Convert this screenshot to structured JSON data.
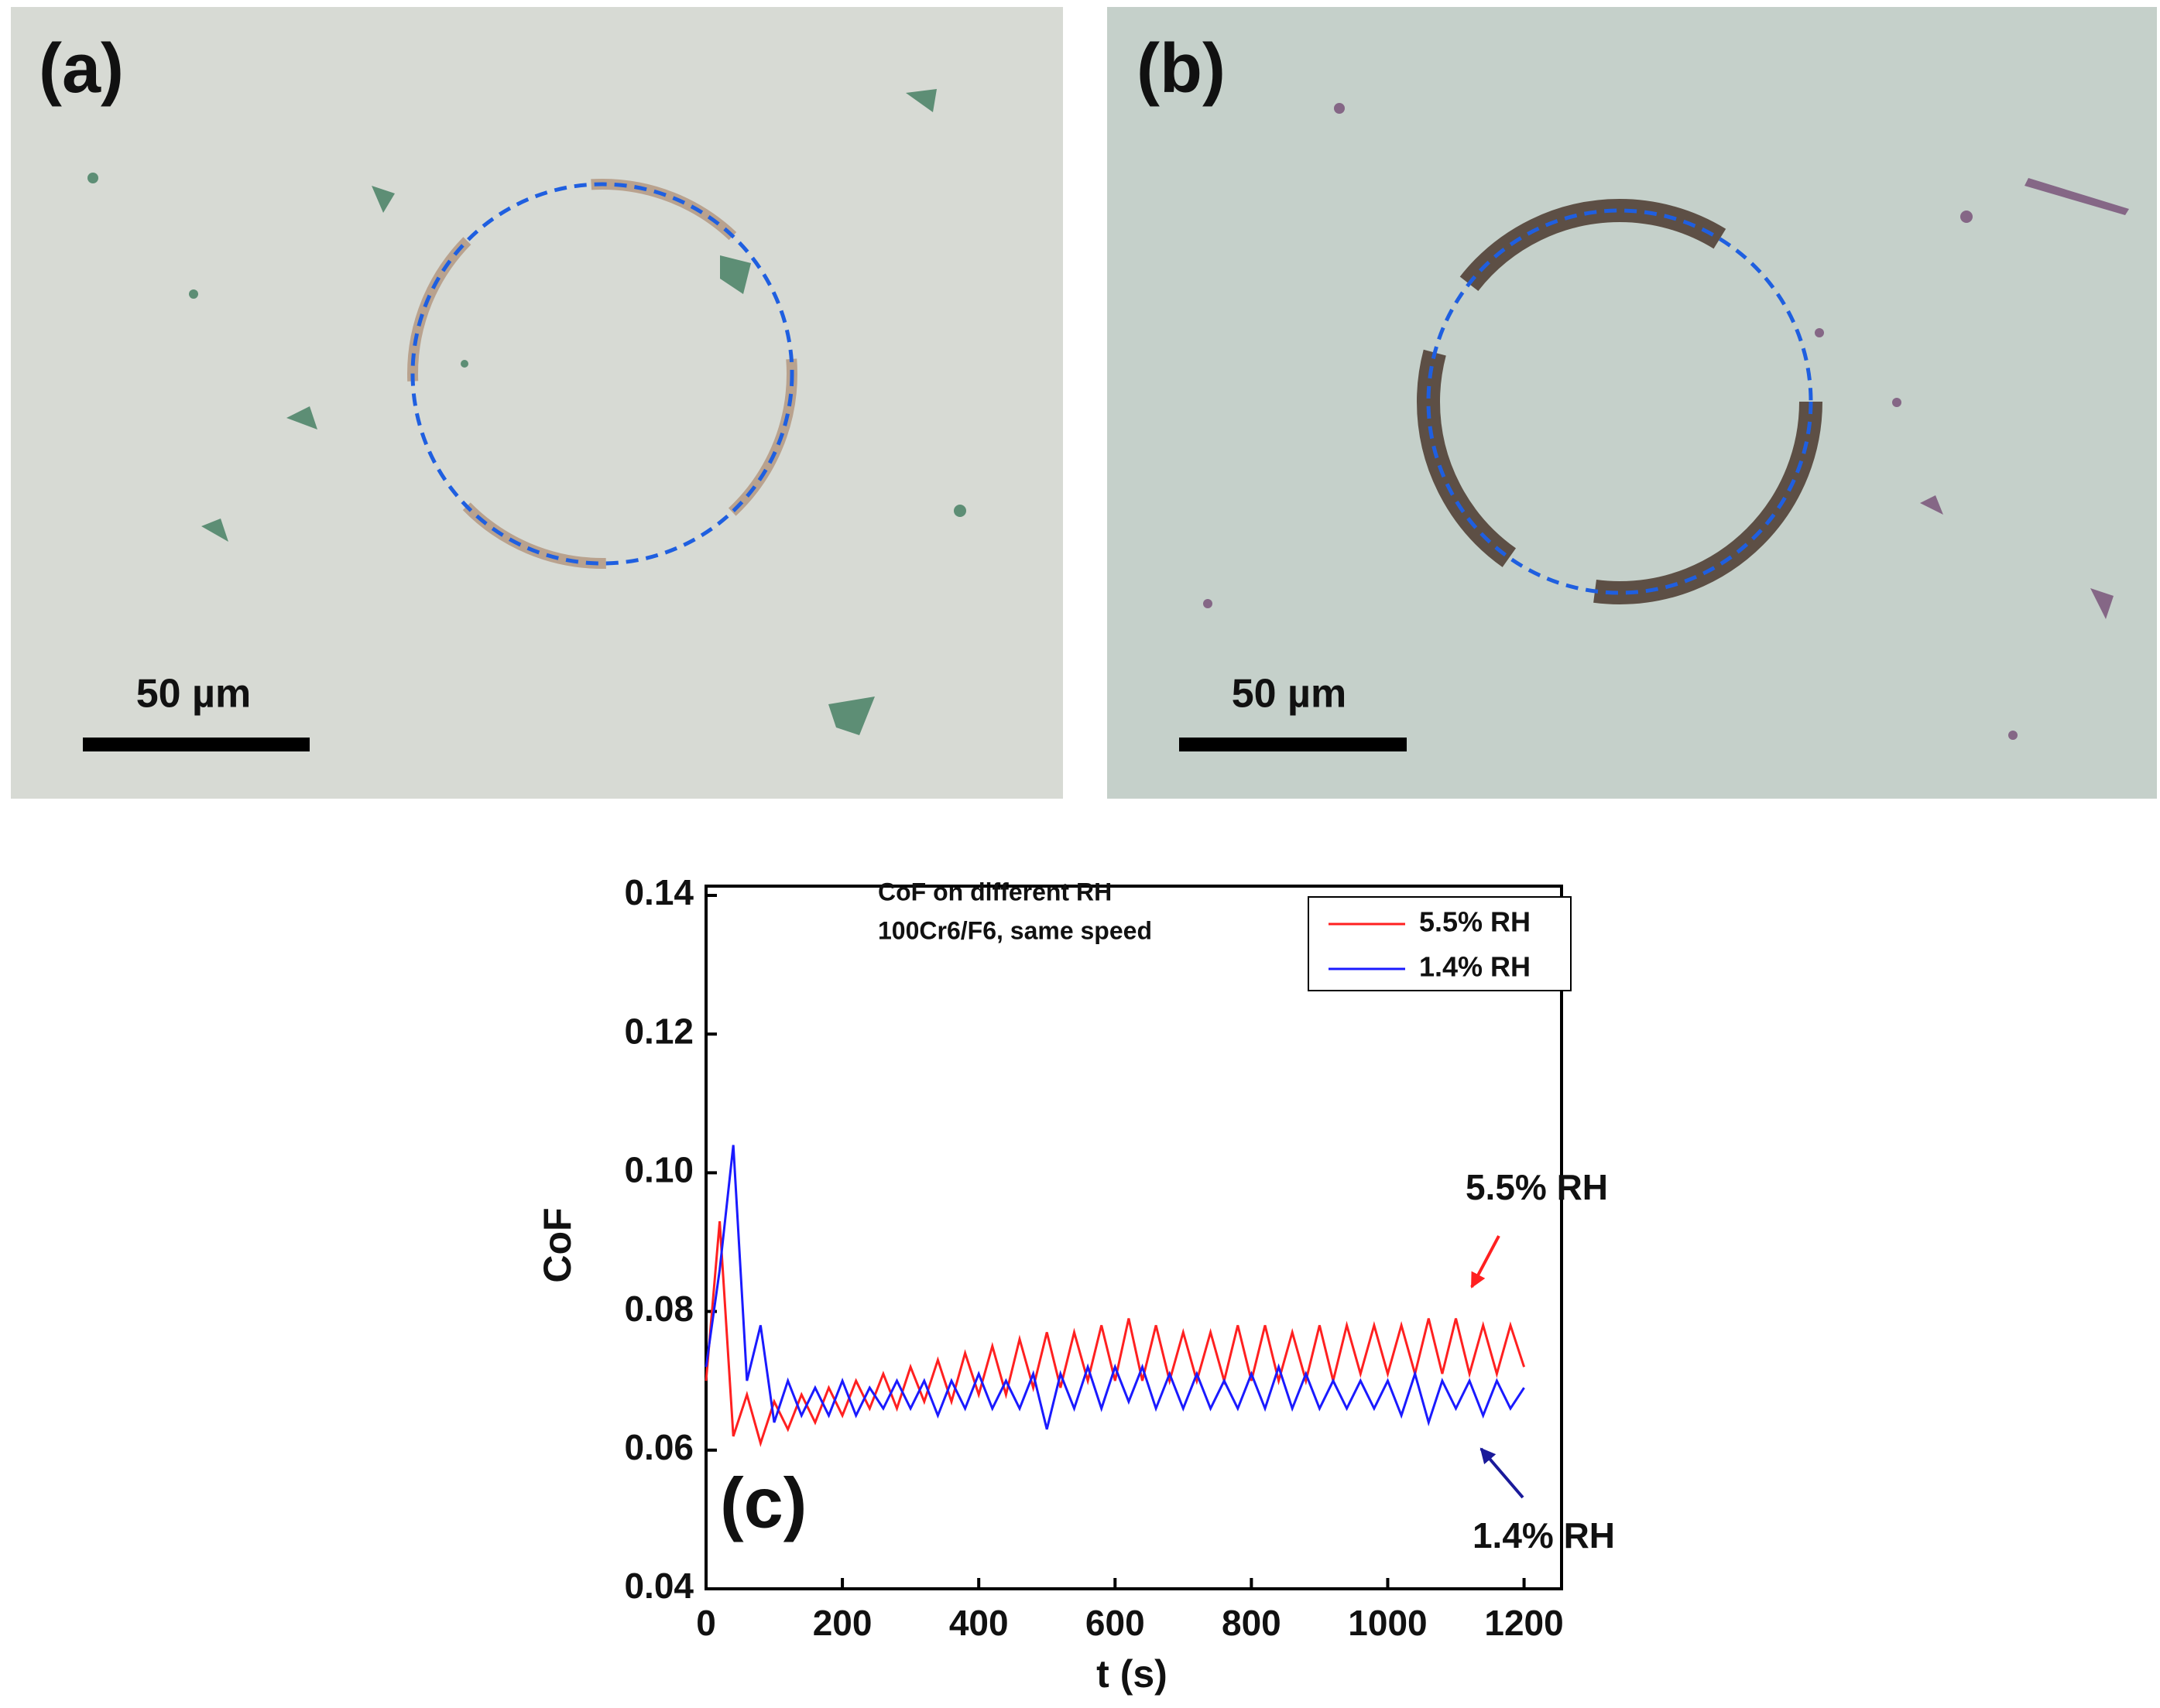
{
  "panels": [
    {
      "label": "(a)",
      "scale_bar": "50 µm"
    },
    {
      "label": "(b)",
      "scale_bar": "50 µm"
    }
  ],
  "chart_data": {
    "type": "line",
    "panel_label": "(c)",
    "title": [
      "CoF on different RH",
      "100Cr6/F6, same speed"
    ],
    "xlabel": "t (s)",
    "ylabel": "CoF",
    "xlim": [
      0,
      1255
    ],
    "xticks": [
      0,
      200,
      400,
      600,
      800,
      1000,
      1200
    ],
    "ylim": [
      0.04,
      0.14
    ],
    "yticks": [
      0.04,
      0.06,
      0.08,
      {
        "value": 0.1,
        "label": "0.10"
      },
      0.12,
      0.14
    ],
    "x": [
      0,
      20,
      40,
      60,
      80,
      100,
      120,
      140,
      160,
      180,
      200,
      220,
      240,
      260,
      280,
      300,
      320,
      340,
      360,
      380,
      400,
      420,
      440,
      460,
      480,
      500,
      520,
      540,
      560,
      580,
      600,
      620,
      640,
      660,
      680,
      700,
      720,
      740,
      760,
      780,
      800,
      820,
      840,
      860,
      880,
      900,
      920,
      940,
      960,
      980,
      1000,
      1020,
      1040,
      1060,
      1080,
      1100,
      1120,
      1140,
      1160,
      1180,
      1200
    ],
    "series": [
      {
        "name": "5.5% RH",
        "color": "#ff2020",
        "values": [
          0.07,
          0.093,
          0.062,
          0.068,
          0.061,
          0.067,
          0.063,
          0.068,
          0.064,
          0.069,
          0.065,
          0.07,
          0.066,
          0.071,
          0.066,
          0.072,
          0.067,
          0.073,
          0.067,
          0.074,
          0.068,
          0.075,
          0.068,
          0.076,
          0.069,
          0.077,
          0.069,
          0.077,
          0.07,
          0.078,
          0.07,
          0.079,
          0.07,
          0.078,
          0.07,
          0.077,
          0.07,
          0.077,
          0.07,
          0.078,
          0.07,
          0.078,
          0.07,
          0.077,
          0.07,
          0.078,
          0.07,
          0.078,
          0.071,
          0.078,
          0.071,
          0.078,
          0.071,
          0.079,
          0.071,
          0.079,
          0.071,
          0.078,
          0.071,
          0.078,
          0.072
        ]
      },
      {
        "name": "1.4% RH",
        "color": "#1a1aff",
        "values": [
          0.072,
          0.086,
          0.104,
          0.07,
          0.078,
          0.064,
          0.07,
          0.065,
          0.069,
          0.065,
          0.07,
          0.065,
          0.069,
          0.066,
          0.07,
          0.066,
          0.07,
          0.065,
          0.07,
          0.066,
          0.071,
          0.066,
          0.07,
          0.066,
          0.071,
          0.063,
          0.071,
          0.066,
          0.072,
          0.066,
          0.072,
          0.067,
          0.072,
          0.066,
          0.071,
          0.066,
          0.071,
          0.066,
          0.07,
          0.066,
          0.071,
          0.066,
          0.072,
          0.066,
          0.071,
          0.066,
          0.07,
          0.066,
          0.07,
          0.066,
          0.07,
          0.065,
          0.071,
          0.064,
          0.07,
          0.066,
          0.07,
          0.065,
          0.07,
          0.066,
          0.069
        ]
      }
    ],
    "annotations": [
      "5.5% RH",
      "1.4% RH"
    ]
  }
}
